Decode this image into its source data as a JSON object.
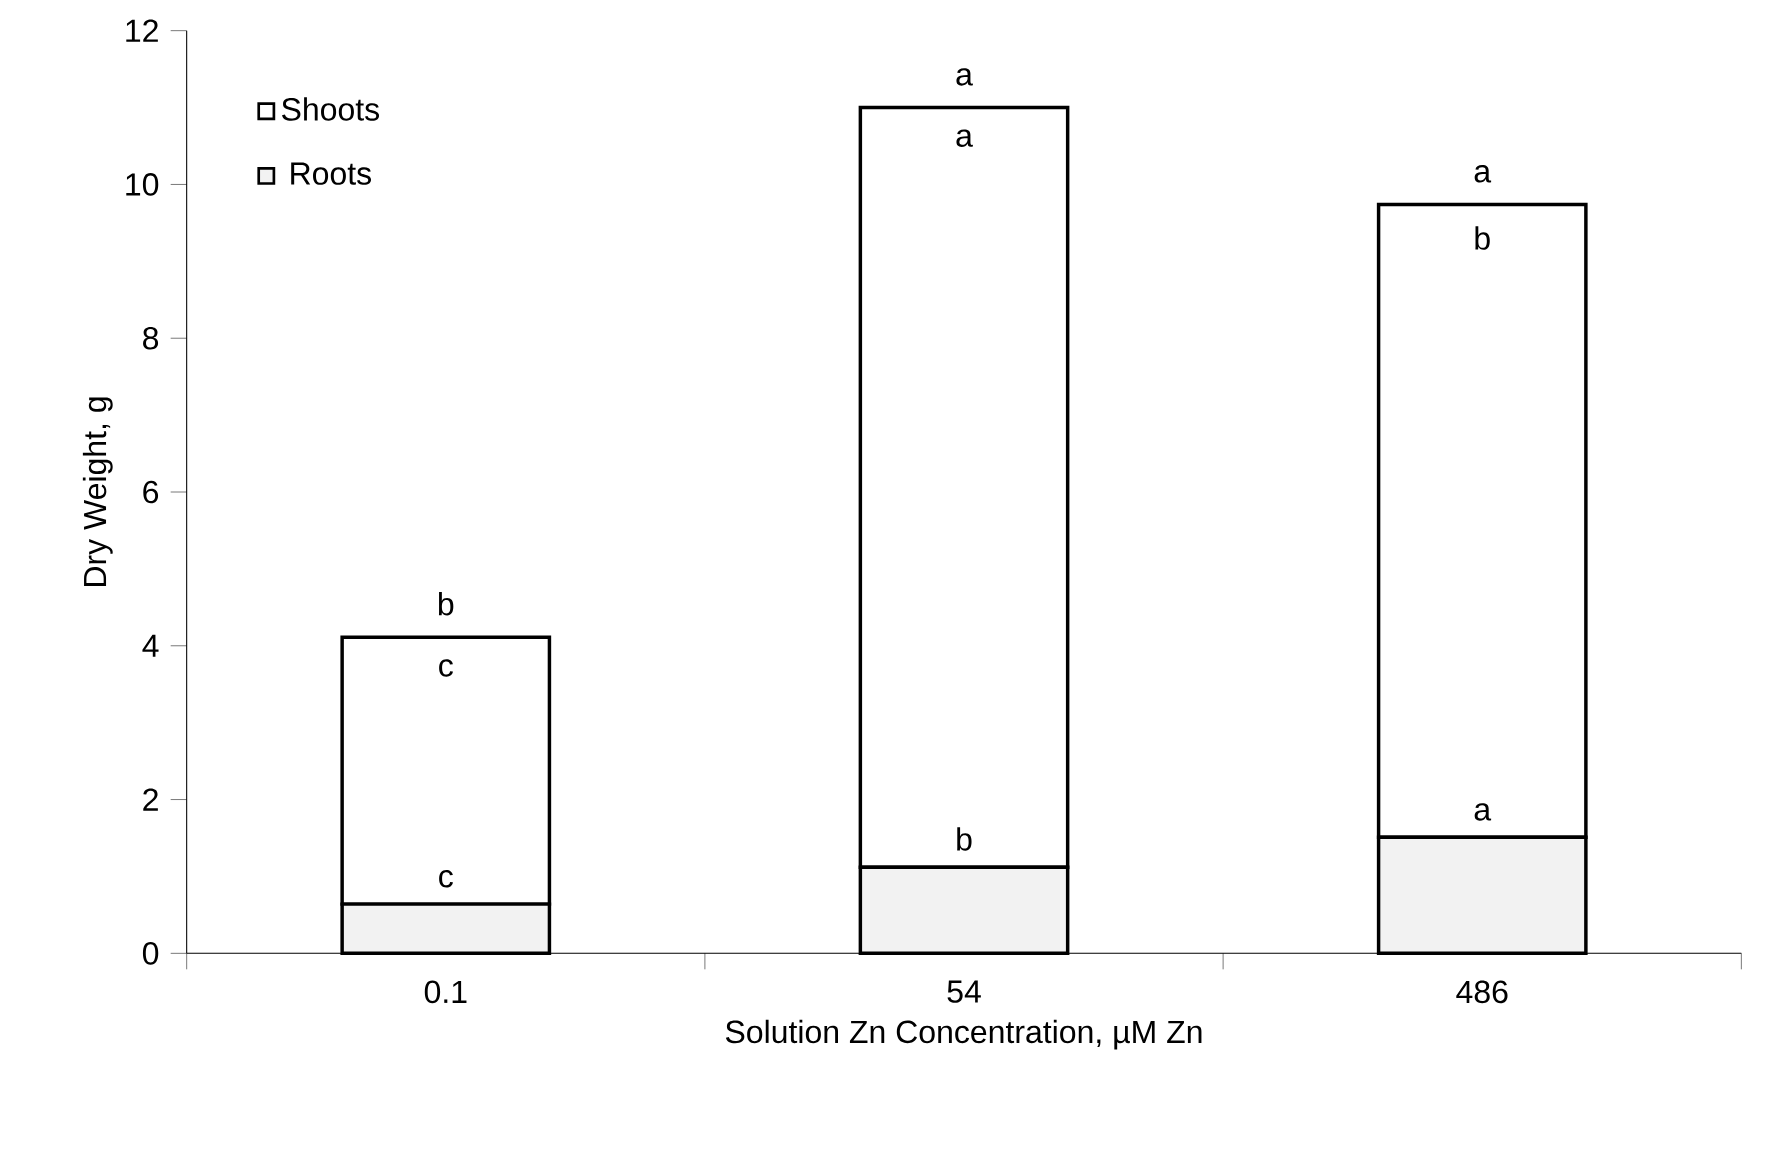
{
  "chart_data": {
    "type": "bar",
    "stacked": true,
    "xlabel": "Solution Zn Concentration, µM Zn",
    "ylabel": "Dry Weight, g",
    "categories": [
      "0.1",
      "54",
      "486"
    ],
    "series": [
      {
        "name": "Roots",
        "color": "#f2f2f2",
        "values": [
          0.64,
          1.12,
          1.51
        ]
      },
      {
        "name": "Shoots",
        "color": "#ffffff",
        "values": [
          3.47,
          9.88,
          8.23
        ]
      }
    ],
    "ylim": [
      0,
      12
    ],
    "yticks": [
      0,
      2,
      4,
      6,
      8,
      10,
      12
    ],
    "legend": "top left",
    "grid": false,
    "annotations": [
      "b",
      "c",
      "c",
      "a",
      "a",
      "b",
      "a",
      "b",
      "a"
    ]
  }
}
